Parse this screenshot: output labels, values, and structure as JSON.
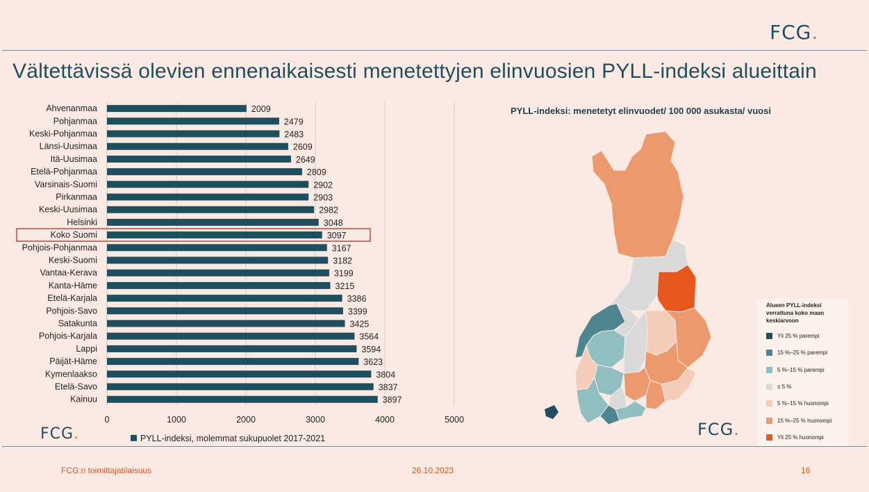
{
  "header": {
    "logo_text": "FCG",
    "logo_dot": "."
  },
  "title": "Vältettävissä olevien ennenaikaisesti menetettyjen elinvuosien PYLL-indeksi alueittain",
  "chart_data": {
    "type": "bar",
    "orientation": "horizontal",
    "categories": [
      "Ahvenanmaa",
      "Pohjanmaa",
      "Keski-Pohjanmaa",
      "Länsi-Uusimaa",
      "Itä-Uusimaa",
      "Etelä-Pohjanmaa",
      "Varsinais-Suomi",
      "Pirkanmaa",
      "Keski-Uusimaa",
      "Helsinki",
      "Koko Suomi",
      "Pohjois-Pohjanmaa",
      "Keski-Suomi",
      "Vantaa-Kerava",
      "Kanta-Häme",
      "Etelä-Karjala",
      "Pohjois-Savo",
      "Satakunta",
      "Pohjois-Karjala",
      "Lappi",
      "Päijät-Häme",
      "Kymenlaakso",
      "Etelä-Savo",
      "Kainuu"
    ],
    "series": [
      {
        "name": "PYLL-indeksi, molemmat sukupuolet 2017-2021",
        "values": [
          2009,
          2479,
          2483,
          2609,
          2649,
          2809,
          2902,
          2903,
          2982,
          3048,
          3097,
          3167,
          3182,
          3199,
          3215,
          3386,
          3399,
          3425,
          3564,
          3594,
          3623,
          3804,
          3837,
          3897
        ]
      }
    ],
    "xlim": [
      0,
      5000
    ],
    "xticks": [
      0,
      1000,
      2000,
      3000,
      4000,
      5000
    ],
    "highlight_category": "Koko Suomi",
    "bar_color": "#1f4e5f",
    "highlight_color": "#c0392b",
    "legend_position": "bottom"
  },
  "map": {
    "subtitle": "PYLL-indeksi:  menetetyt elinvuodet/ 100 000 asukasta/ vuosi",
    "legend_title": "Alueen PYLL-indeksi verrattuna koko maan keskiarvoon",
    "legend": [
      {
        "label": "Yli 25 % parempi",
        "color": "#1f4e5f"
      },
      {
        "label": "15 %–25 % parempi",
        "color": "#4d8590"
      },
      {
        "label": "5 %–15 % parempi",
        "color": "#8fbfc0"
      },
      {
        "label": "± 5 %",
        "color": "#d9d9d9"
      },
      {
        "label": "5 %–15 % huonompi",
        "color": "#f4cdb9"
      },
      {
        "label": "15 %–25 % huonompi",
        "color": "#ec9a6d"
      },
      {
        "label": "Yli 25 % huonompi",
        "color": "#e8581d"
      }
    ]
  },
  "footer": {
    "left": "FCG:n toimittajatilaisuus",
    "center": "26.10.2023",
    "right": "16"
  }
}
